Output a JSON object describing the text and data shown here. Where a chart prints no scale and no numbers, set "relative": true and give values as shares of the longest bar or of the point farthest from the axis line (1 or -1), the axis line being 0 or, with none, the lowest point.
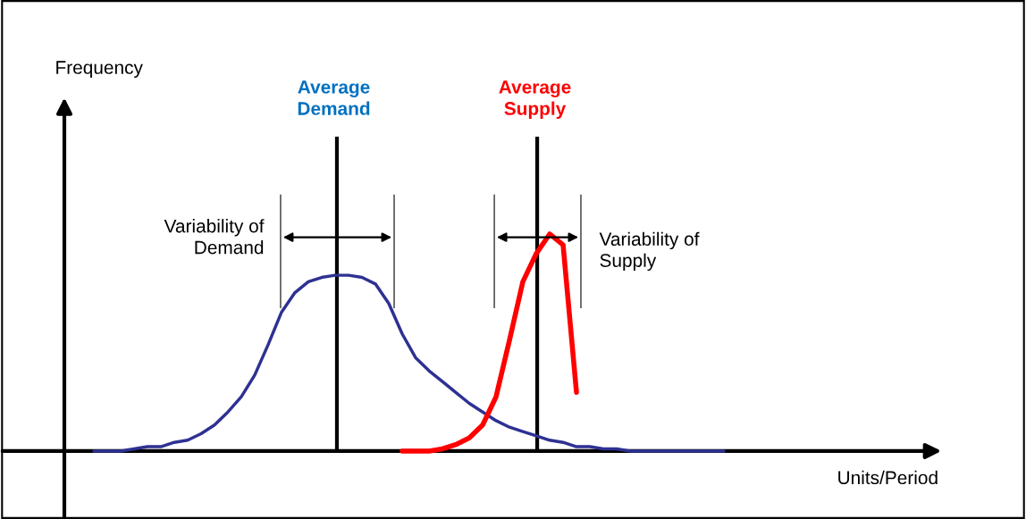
{
  "chart_data": {
    "type": "line",
    "relative": true,
    "categories": [
      null,
      null,
      null,
      null,
      null,
      null,
      null,
      null,
      null,
      null,
      null,
      null,
      null,
      null,
      null,
      null,
      null,
      null,
      null,
      null,
      null,
      null,
      null,
      null,
      null,
      null,
      null,
      null,
      null,
      null,
      null,
      null,
      null,
      null,
      null,
      null,
      null,
      null,
      null,
      null,
      null,
      null,
      null,
      null,
      null,
      null,
      null,
      null
    ],
    "series": [
      {
        "color": "#2e3192",
        "values": [
          0,
          0,
          0.0,
          0.01,
          0.02,
          0.02,
          0.04,
          0.05,
          0.08,
          0.12,
          0.18,
          0.25,
          0.35,
          0.49,
          0.64,
          0.73,
          0.78,
          0.8,
          0.81,
          0.81,
          0.8,
          0.77,
          0.68,
          0.54,
          0.43,
          0.37,
          0.32,
          0.27,
          0.22,
          0.18,
          0.14,
          0.11,
          0.09,
          0.07,
          0.05,
          0.04,
          0.02,
          0.02,
          0.01,
          0.01,
          0.0,
          0.0,
          0,
          0,
          0,
          0,
          0,
          0
        ]
      },
      {
        "color": "#ff0000",
        "values": [
          null,
          null,
          null,
          null,
          null,
          null,
          null,
          null,
          null,
          null,
          null,
          null,
          null,
          null,
          null,
          null,
          null,
          null,
          null,
          null,
          null,
          null,
          null,
          0,
          0,
          0,
          0.01,
          0.03,
          0.06,
          0.12,
          0.25,
          0.51,
          0.78,
          0.91,
          1.0,
          0.95,
          0.27,
          null,
          null,
          null,
          null,
          null,
          null,
          null,
          null,
          null,
          null,
          null
        ]
      }
    ],
    "annotations": [
      "Frequency",
      "Average\nDemand",
      "Average\nSupply",
      "Variability of\nDemand",
      "Variability of\nSupply",
      "Units/Period"
    ],
    "marker": "none",
    "line_style": "solid"
  }
}
